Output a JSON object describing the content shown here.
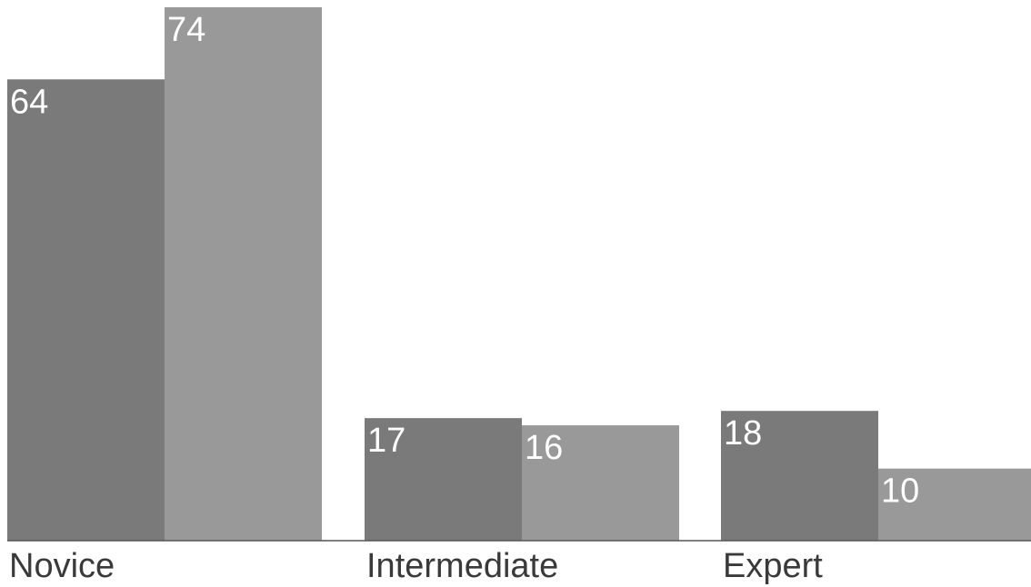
{
  "chart_data": {
    "type": "bar",
    "categories": [
      "Novice",
      "Intermediate",
      "Expert"
    ],
    "series": [
      {
        "values": [
          64,
          17,
          18
        ],
        "color": "#7a7a7a"
      },
      {
        "values": [
          74,
          16,
          10
        ],
        "color": "#999999"
      }
    ],
    "ylim": [
      0,
      74
    ],
    "grid": false,
    "legend": "none",
    "data_labels": true
  }
}
